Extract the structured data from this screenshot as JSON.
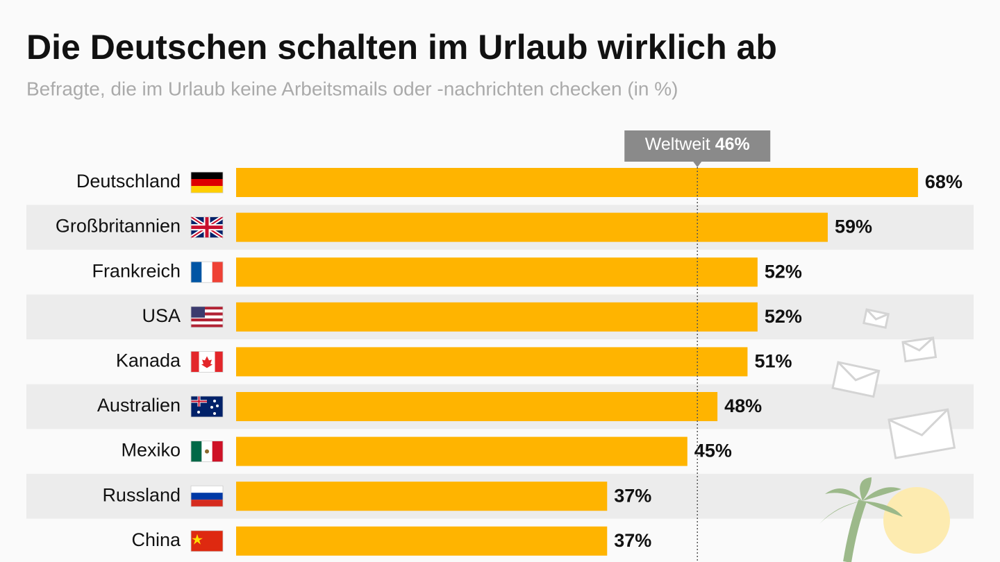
{
  "chart_data": {
    "type": "bar",
    "orientation": "horizontal",
    "title": "Die Deutschen schalten im Urlaub wirklich ab",
    "subtitle": "Befragte, die im Urlaub keine Arbeitsmails oder -nachrichten checken (in %)",
    "categories": [
      "Deutschland",
      "Großbritannien",
      "Frankreich",
      "USA",
      "Kanada",
      "Australien",
      "Mexiko",
      "Russland",
      "China"
    ],
    "values": [
      68,
      59,
      52,
      52,
      51,
      48,
      45,
      37,
      37
    ],
    "value_labels": [
      "68%",
      "59%",
      "52%",
      "52%",
      "51%",
      "48%",
      "45%",
      "37%",
      "37%"
    ],
    "color": "#ffb400",
    "reference": {
      "label": "Weltweit",
      "value": 46,
      "value_label": "46%"
    }
  }
}
